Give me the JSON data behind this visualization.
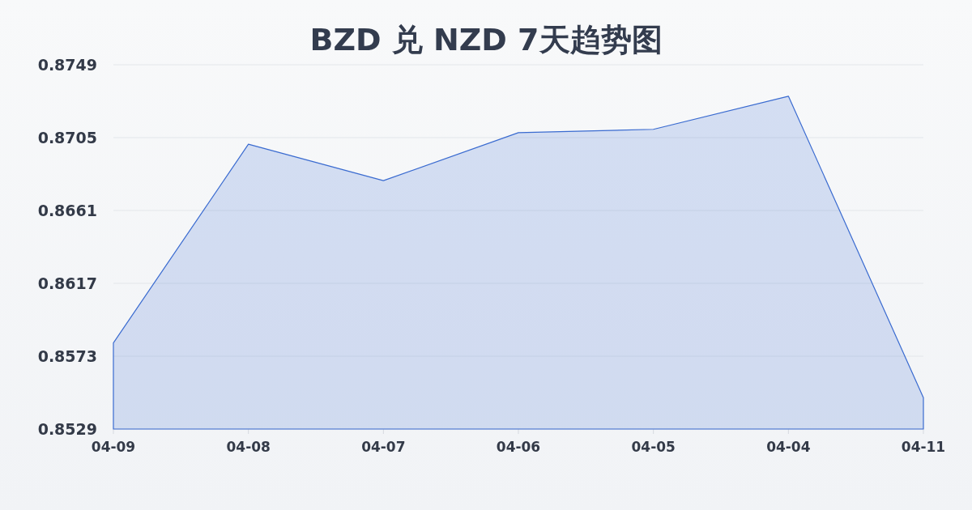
{
  "chart_data": {
    "type": "area",
    "title": "BZD 兑 NZD 7天趋势图",
    "categories": [
      "04-09",
      "04-08",
      "04-07",
      "04-06",
      "04-05",
      "04-04",
      "04-11"
    ],
    "values": [
      0.8581,
      0.8701,
      0.8679,
      0.8708,
      0.871,
      0.873,
      0.8548
    ],
    "color": "#3a6bd0",
    "ylim": [
      0.8529,
      0.8749
    ],
    "yticks": [
      0.8529,
      0.8573,
      0.8617,
      0.8661,
      0.8705,
      0.8749
    ],
    "grid": "y"
  }
}
